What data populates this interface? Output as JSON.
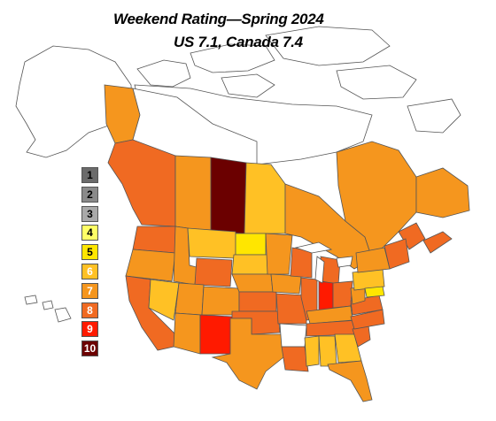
{
  "title": {
    "line1": "Weekend Rating—Spring 2024",
    "line2": "US 7.1, Canada 7.4"
  },
  "legend": [
    {
      "rating": "1",
      "color": "#6b6b6b",
      "text_color": "#000000"
    },
    {
      "rating": "2",
      "color": "#8a8a8a",
      "text_color": "#000000"
    },
    {
      "rating": "3",
      "color": "#a9a9a9",
      "text_color": "#000000"
    },
    {
      "rating": "4",
      "color": "#ffff66",
      "text_color": "#000000"
    },
    {
      "rating": "5",
      "color": "#ffe600",
      "text_color": "#000000"
    },
    {
      "rating": "6",
      "color": "#ffc125",
      "text_color": "#ffffff"
    },
    {
      "rating": "7",
      "color": "#f5961e",
      "text_color": "#ffffff"
    },
    {
      "rating": "8",
      "color": "#f06a22",
      "text_color": "#ffffff"
    },
    {
      "rating": "9",
      "color": "#ff1a00",
      "text_color": "#ffffff"
    },
    {
      "rating": "10",
      "color": "#6b0000",
      "text_color": "#ffffff"
    }
  ],
  "colors": {
    "unrated": "#ffffff",
    "border": "#555555",
    "gray_land": "#e8e8e8"
  }
}
